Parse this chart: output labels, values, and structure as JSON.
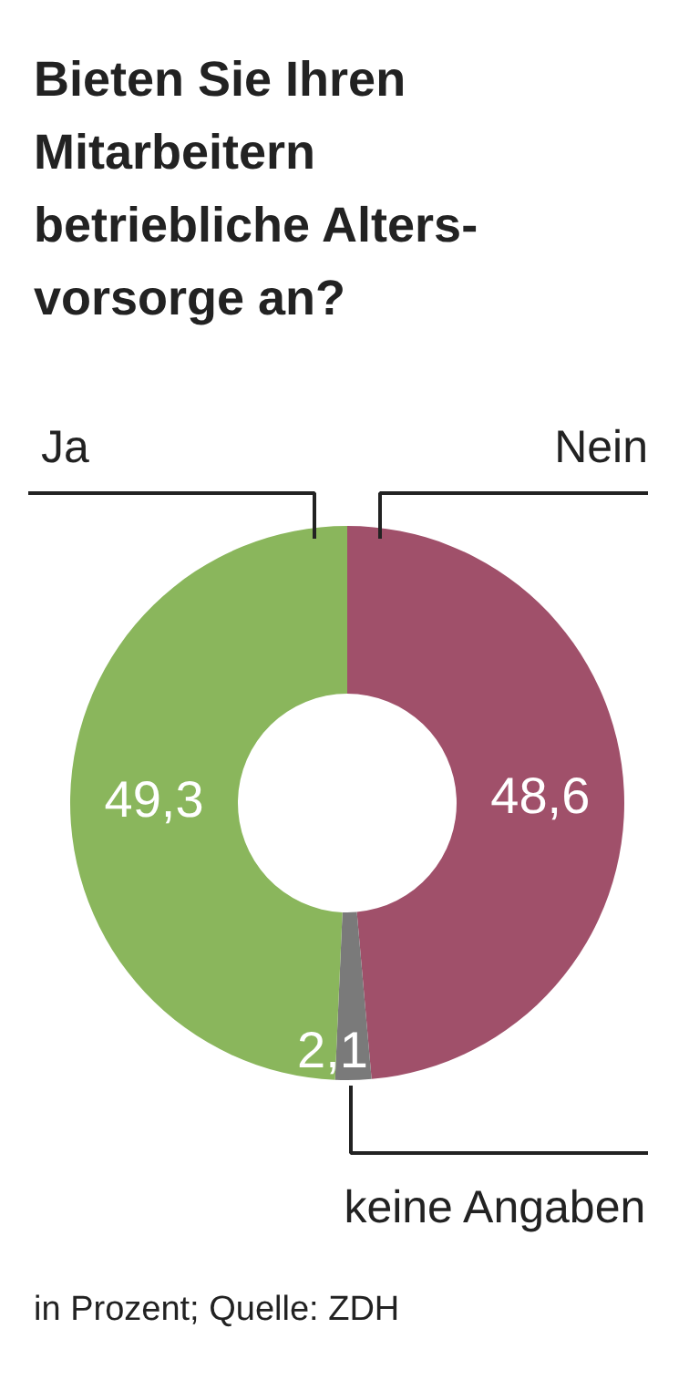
{
  "chart_data": {
    "type": "donut",
    "title": "Bieten Sie Ihren\nMitarbeitern\nbetriebliche Alters-\nvorsorge an?",
    "categories": [
      "Nein",
      "keine Angaben",
      "Ja"
    ],
    "values": [
      48.6,
      2.1,
      49.3
    ],
    "colors": [
      "#a0506a",
      "#7a7a7a",
      "#8ab65c"
    ],
    "value_labels": [
      "48,6",
      "2,1",
      "49,3"
    ],
    "annotations": [
      "in Prozent; Quelle: ZDH"
    ]
  }
}
